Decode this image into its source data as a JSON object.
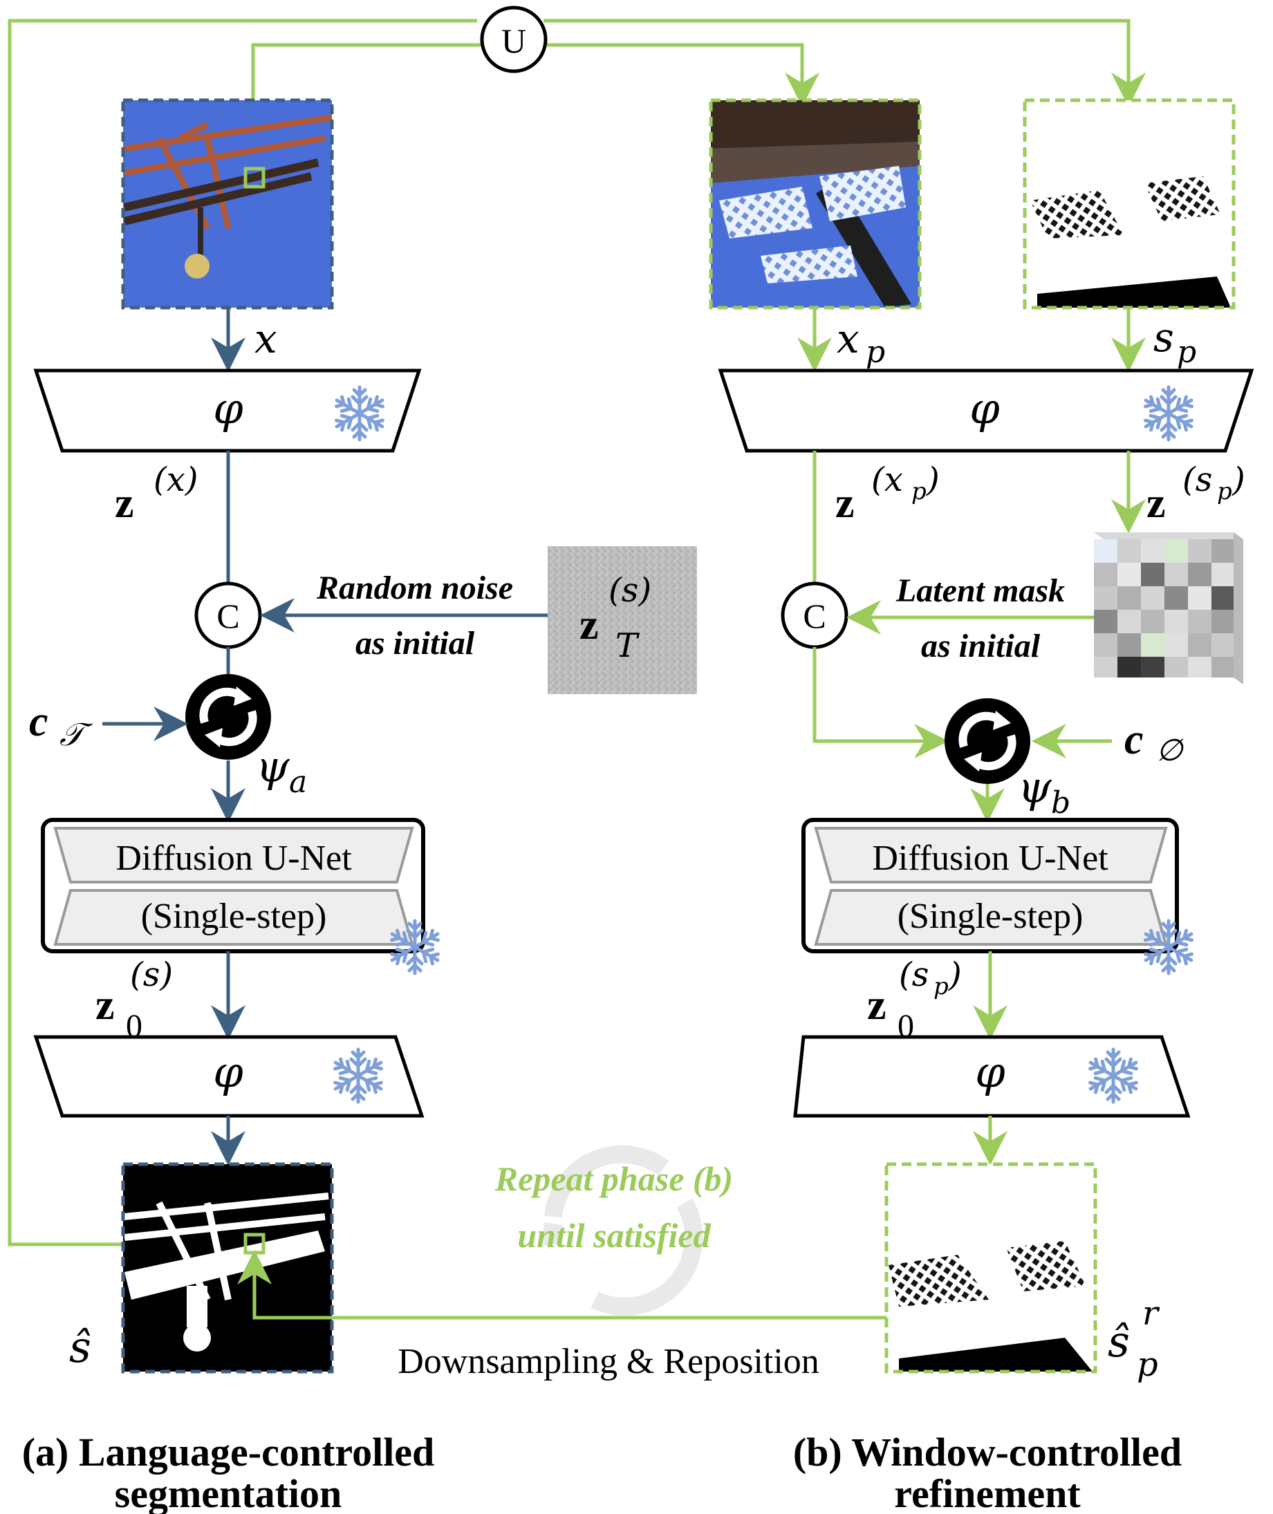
{
  "update_node": "U",
  "phase_a": {
    "caption_line1": "(a) Language-controlled",
    "caption_line2": "segmentation",
    "input_label": "x",
    "encoder_label": "φ",
    "latent_x_label": "z",
    "latent_x_sup": "(x)",
    "concat_label": "C",
    "noise_text_line1": "Random noise",
    "noise_text_line2": "as initial",
    "noise_label": "z",
    "noise_sub": "T",
    "noise_sup": "(s)",
    "cond_label": "c",
    "cond_sub": "𝒯",
    "adapter_label": "ψ",
    "adapter_sub": "a",
    "unet_line1": "Diffusion U-Net",
    "unet_line2": "(Single-step)",
    "z0_label": "z",
    "z0_sub": "0",
    "z0_sup": "(s)",
    "decoder_label": "φ",
    "output_label": "ŝ"
  },
  "phase_b": {
    "caption_line1": "(b) Window-controlled",
    "caption_line2": "refinement",
    "input_label": "x",
    "input_sub": "p",
    "mask_label": "s",
    "mask_sub": "p",
    "encoder_label": "φ",
    "latent_x_label": "z",
    "latent_x_sup": "(x",
    "latent_x_sup_sub": "p",
    "latent_s_label": "z",
    "latent_s_sup": "(s",
    "latent_s_sup_sub": "p",
    "concat_label": "C",
    "mask_text_line1": "Latent mask",
    "mask_text_line2": "as initial",
    "cond_label": "c",
    "cond_sub": "∅",
    "adapter_label": "ψ",
    "adapter_sub": "b",
    "unet_line1": "Diffusion U-Net",
    "unet_line2": "(Single-step)",
    "z0_label": "z",
    "z0_sub": "0",
    "z0_sup": "(s",
    "z0_sup_sub": "p",
    "decoder_label": "φ",
    "output_label": "ŝ",
    "output_sub": "p",
    "output_sup": "r"
  },
  "repeat_text_line1": "Repeat phase (b)",
  "repeat_text_line2": "until satisfied",
  "feedback_label": "Downsampling & Reposition",
  "colors": {
    "phase_a_blue": "#3d5f80",
    "phase_b_green": "#9bcb5a",
    "sky": "#4a6ed8",
    "frozen_snowflake": "#7f9fd9"
  }
}
